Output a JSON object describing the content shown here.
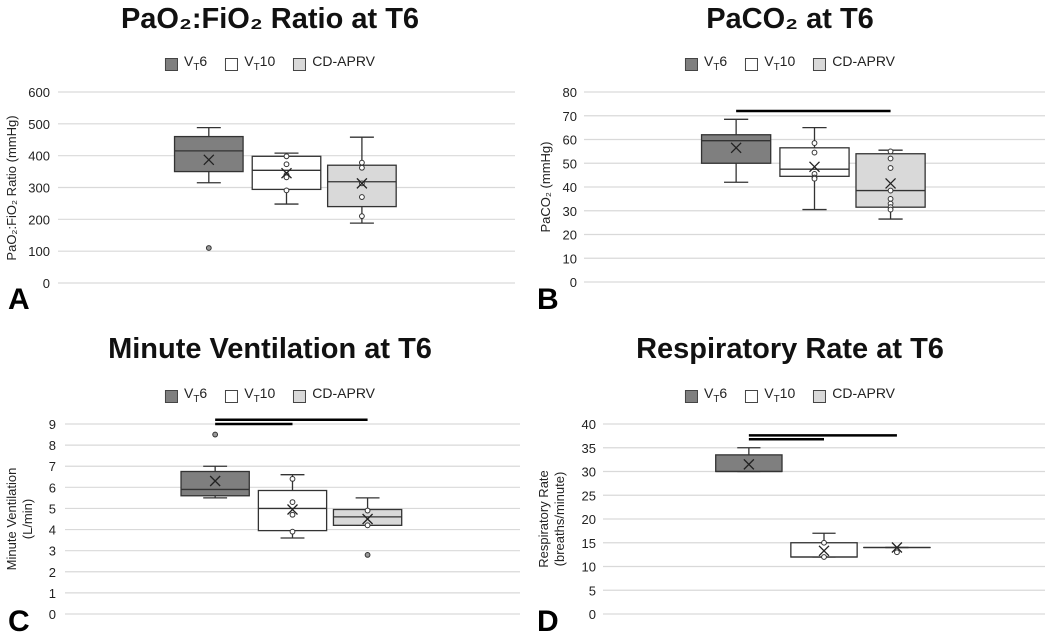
{
  "legend": [
    {
      "main": "V",
      "sub": "T",
      "suffix": "6",
      "color": "#7f7f7f"
    },
    {
      "main": "V",
      "sub": "T",
      "suffix": "10",
      "color": "#ffffff"
    },
    {
      "main": "CD-APRV",
      "sub": "",
      "suffix": "",
      "color": "#d9d9d9"
    }
  ],
  "chart_data": [
    {
      "type": "box",
      "panel": "A",
      "title": "PaO₂:FiO₂ Ratio at T6",
      "ylabel": [
        "PaO₂:FiO₂ Ratio (mmHg)"
      ],
      "ylim": [
        0,
        600
      ],
      "ticks": [
        0,
        100,
        200,
        300,
        400,
        500,
        600
      ],
      "series": [
        {
          "name": "VT6",
          "min": 315,
          "q1": 350,
          "median": 415,
          "q3": 460,
          "max": 488,
          "mean": 387,
          "points": [],
          "outliers": [
            110
          ]
        },
        {
          "name": "VT10",
          "min": 248,
          "q1": 294,
          "median": 354,
          "q3": 398,
          "max": 408,
          "mean": 345,
          "points": [
            398,
            373,
            340,
            332,
            291
          ],
          "outliers": []
        },
        {
          "name": "CD-APRV",
          "min": 188,
          "q1": 240,
          "median": 318,
          "q3": 370,
          "max": 458,
          "mean": 313,
          "points": [
            378,
            362,
            313,
            270,
            210
          ],
          "outliers": []
        }
      ],
      "significance": []
    },
    {
      "type": "box",
      "panel": "B",
      "title": "PaCO₂ at T6",
      "ylabel": [
        "PaCO₂ (mmHg)"
      ],
      "ylim": [
        0,
        80
      ],
      "ticks": [
        0,
        10,
        20,
        30,
        40,
        50,
        60,
        70,
        80
      ],
      "series": [
        {
          "name": "VT6",
          "min": 42,
          "q1": 50,
          "median": 59.5,
          "q3": 62,
          "max": 68.5,
          "mean": 56.5,
          "points": [],
          "outliers": []
        },
        {
          "name": "VT10",
          "min": 30.5,
          "q1": 44.5,
          "median": 47.5,
          "q3": 56.5,
          "max": 65,
          "mean": 48.5,
          "points": [
            58.5,
            54.5,
            45.5,
            44,
            43.5
          ],
          "outliers": []
        },
        {
          "name": "CD-APRV",
          "min": 26.5,
          "q1": 31.5,
          "median": 38.5,
          "q3": 54,
          "max": 55.5,
          "mean": 41.5,
          "points": [
            55,
            52,
            48,
            38.5,
            35,
            33,
            31.5,
            30.5
          ],
          "outliers": []
        }
      ],
      "significance": [
        {
          "from": 0,
          "to": 2,
          "y": 72
        }
      ]
    },
    {
      "type": "box",
      "panel": "C",
      "title": "Minute Ventilation at T6",
      "ylabel": [
        "Minute Ventilation",
        "(L/min)"
      ],
      "ylim": [
        0,
        9
      ],
      "ticks": [
        0,
        1,
        2,
        3,
        4,
        5,
        6,
        7,
        8,
        9
      ],
      "series": [
        {
          "name": "VT6",
          "min": 5.5,
          "q1": 5.6,
          "median": 5.9,
          "q3": 6.75,
          "max": 7.0,
          "mean": 6.3,
          "points": [],
          "outliers": [
            8.5
          ]
        },
        {
          "name": "VT10",
          "min": 3.6,
          "q1": 3.95,
          "median": 5.0,
          "q3": 5.85,
          "max": 6.6,
          "mean": 4.95,
          "points": [
            6.4,
            5.3,
            4.7,
            3.9
          ],
          "outliers": []
        },
        {
          "name": "CD-APRV",
          "min": 4.2,
          "q1": 4.2,
          "median": 4.6,
          "q3": 4.95,
          "max": 5.5,
          "mean": 4.5,
          "points": [
            4.9,
            4.2
          ],
          "outliers": [
            2.8
          ]
        }
      ],
      "significance": [
        {
          "from": 0,
          "to": 1,
          "y": 9.0
        },
        {
          "from": 0,
          "to": 2,
          "y": 9.2
        }
      ]
    },
    {
      "type": "box",
      "panel": "D",
      "title": "Respiratory Rate at T6",
      "ylabel": [
        "Respiratory Rate",
        "(breaths/minute)"
      ],
      "ylim": [
        0,
        40
      ],
      "ticks": [
        0,
        5,
        10,
        15,
        20,
        25,
        30,
        35,
        40
      ],
      "series": [
        {
          "name": "VT6",
          "min": 30,
          "q1": 30,
          "median": 30,
          "q3": 33.5,
          "max": 35,
          "mean": 31.5,
          "points": [],
          "outliers": []
        },
        {
          "name": "VT10",
          "min": 12,
          "q1": 12,
          "median": 12,
          "q3": 15,
          "max": 17,
          "mean": 13.3,
          "points": [
            15,
            12
          ],
          "outliers": []
        },
        {
          "name": "CD-APRV",
          "min": 14,
          "q1": 14,
          "median": 14,
          "q3": 14,
          "max": 14,
          "mean": 14,
          "points": [
            13
          ],
          "outliers": []
        }
      ],
      "significance": [
        {
          "from": 0,
          "to": 1,
          "y": 36.8
        },
        {
          "from": 0,
          "to": 2,
          "y": 37.6
        }
      ]
    }
  ]
}
